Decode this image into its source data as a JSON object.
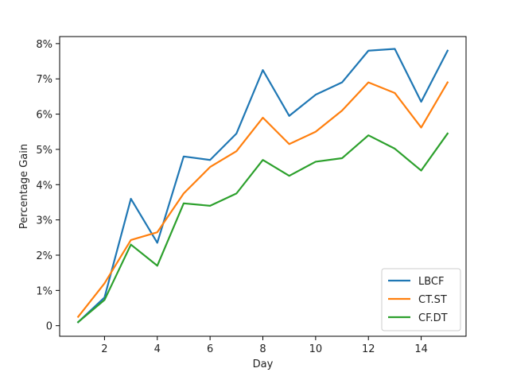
{
  "chart_data": {
    "type": "line",
    "title": "",
    "xlabel": "Day",
    "ylabel": "Percentage Gain",
    "xlim": [
      0.3,
      15.7
    ],
    "ylim": [
      -0.003,
      0.082
    ],
    "xticks": [
      2,
      4,
      6,
      8,
      10,
      12,
      14
    ],
    "xtick_labels": [
      "2",
      "4",
      "6",
      "8",
      "10",
      "12",
      "14"
    ],
    "yticks": [
      0,
      0.01,
      0.02,
      0.03,
      0.04,
      0.05,
      0.06,
      0.07,
      0.08
    ],
    "ytick_labels": [
      "0",
      "1%",
      "2%",
      "3%",
      "4%",
      "5%",
      "6%",
      "7%",
      "8%"
    ],
    "grid": false,
    "legend_position": "bottom-right",
    "x": [
      1,
      2,
      3,
      4,
      5,
      6,
      7,
      8,
      9,
      10,
      11,
      12,
      13,
      14,
      15
    ],
    "series": [
      {
        "name": "LBCF",
        "color": "#1f77b4",
        "values": [
          0.001,
          0.008,
          0.036,
          0.0235,
          0.048,
          0.047,
          0.0545,
          0.0725,
          0.0595,
          0.0655,
          0.069,
          0.078,
          0.0785,
          0.0635,
          0.078
        ]
      },
      {
        "name": "CT.ST",
        "color": "#ff7f0e",
        "values": [
          0.0025,
          0.012,
          0.0243,
          0.0265,
          0.0375,
          0.045,
          0.0495,
          0.059,
          0.0515,
          0.055,
          0.061,
          0.069,
          0.066,
          0.0562,
          0.069
        ]
      },
      {
        "name": "CF.DT",
        "color": "#2ca02c",
        "values": [
          0.001,
          0.0073,
          0.023,
          0.017,
          0.0347,
          0.034,
          0.0375,
          0.047,
          0.0425,
          0.0465,
          0.0475,
          0.054,
          0.0502,
          0.044,
          0.0545
        ]
      }
    ]
  }
}
